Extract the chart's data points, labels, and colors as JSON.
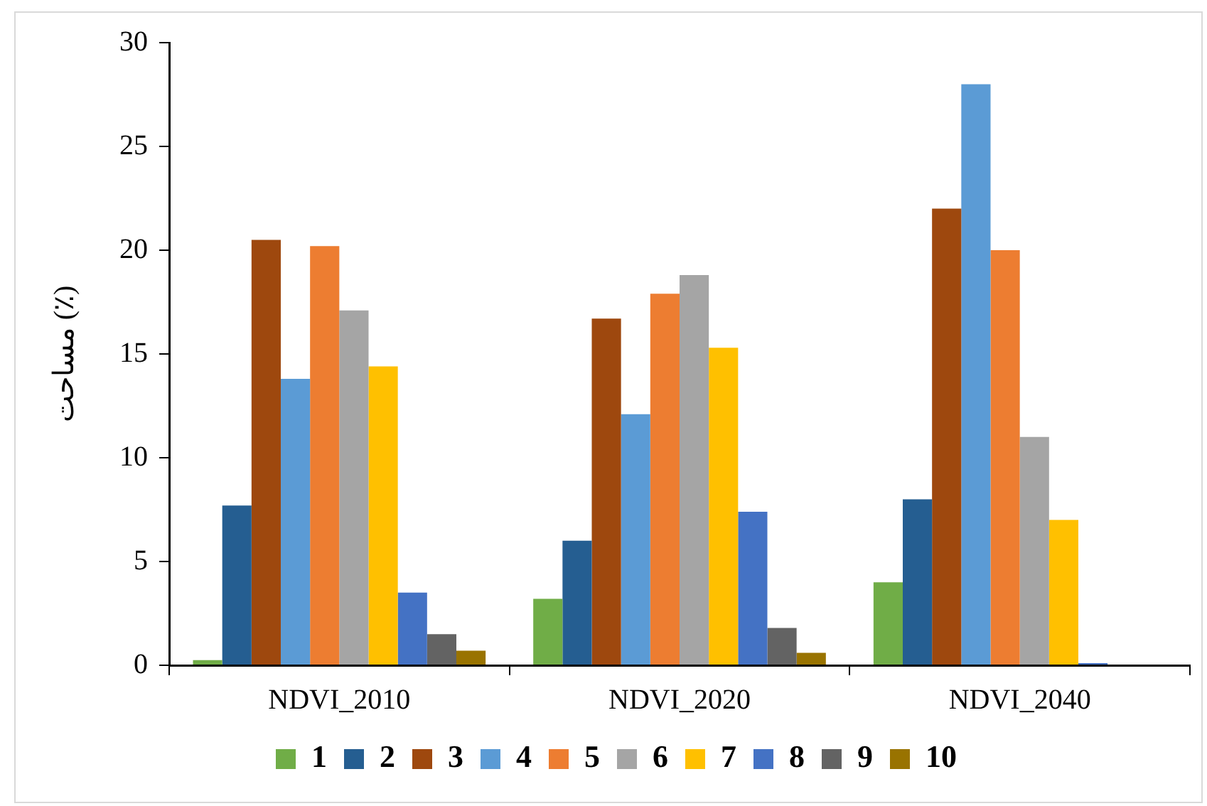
{
  "chart_data": {
    "type": "bar",
    "ylabel": "مساحت (٪)",
    "categories": [
      "NDVI_2010",
      "NDVI_2020",
      "NDVI_2040"
    ],
    "series": [
      {
        "name": "1",
        "color": "#70ad47",
        "values": [
          0.25,
          3.2,
          4.0
        ]
      },
      {
        "name": "2",
        "color": "#255e91",
        "values": [
          7.7,
          6.0,
          8.0
        ]
      },
      {
        "name": "3",
        "color": "#9e480e",
        "values": [
          20.5,
          16.7,
          22.0
        ]
      },
      {
        "name": "4",
        "color": "#5b9bd5",
        "values": [
          13.8,
          12.1,
          28.0
        ]
      },
      {
        "name": "5",
        "color": "#ed7d31",
        "values": [
          20.2,
          17.9,
          20.0
        ]
      },
      {
        "name": "6",
        "color": "#a5a5a5",
        "values": [
          17.1,
          18.8,
          11.0
        ]
      },
      {
        "name": "7",
        "color": "#ffc000",
        "values": [
          14.4,
          15.3,
          7.0
        ]
      },
      {
        "name": "8",
        "color": "#4472c4",
        "values": [
          3.5,
          7.4,
          0.1
        ]
      },
      {
        "name": "9",
        "color": "#636363",
        "values": [
          1.5,
          1.8,
          null
        ]
      },
      {
        "name": "10",
        "color": "#997300",
        "values": [
          0.7,
          0.6,
          0.0
        ]
      }
    ],
    "ylim": [
      0,
      30
    ],
    "yticks": [
      0,
      5,
      10,
      15,
      20,
      25,
      30
    ],
    "grid": false,
    "legend": "bottom"
  }
}
